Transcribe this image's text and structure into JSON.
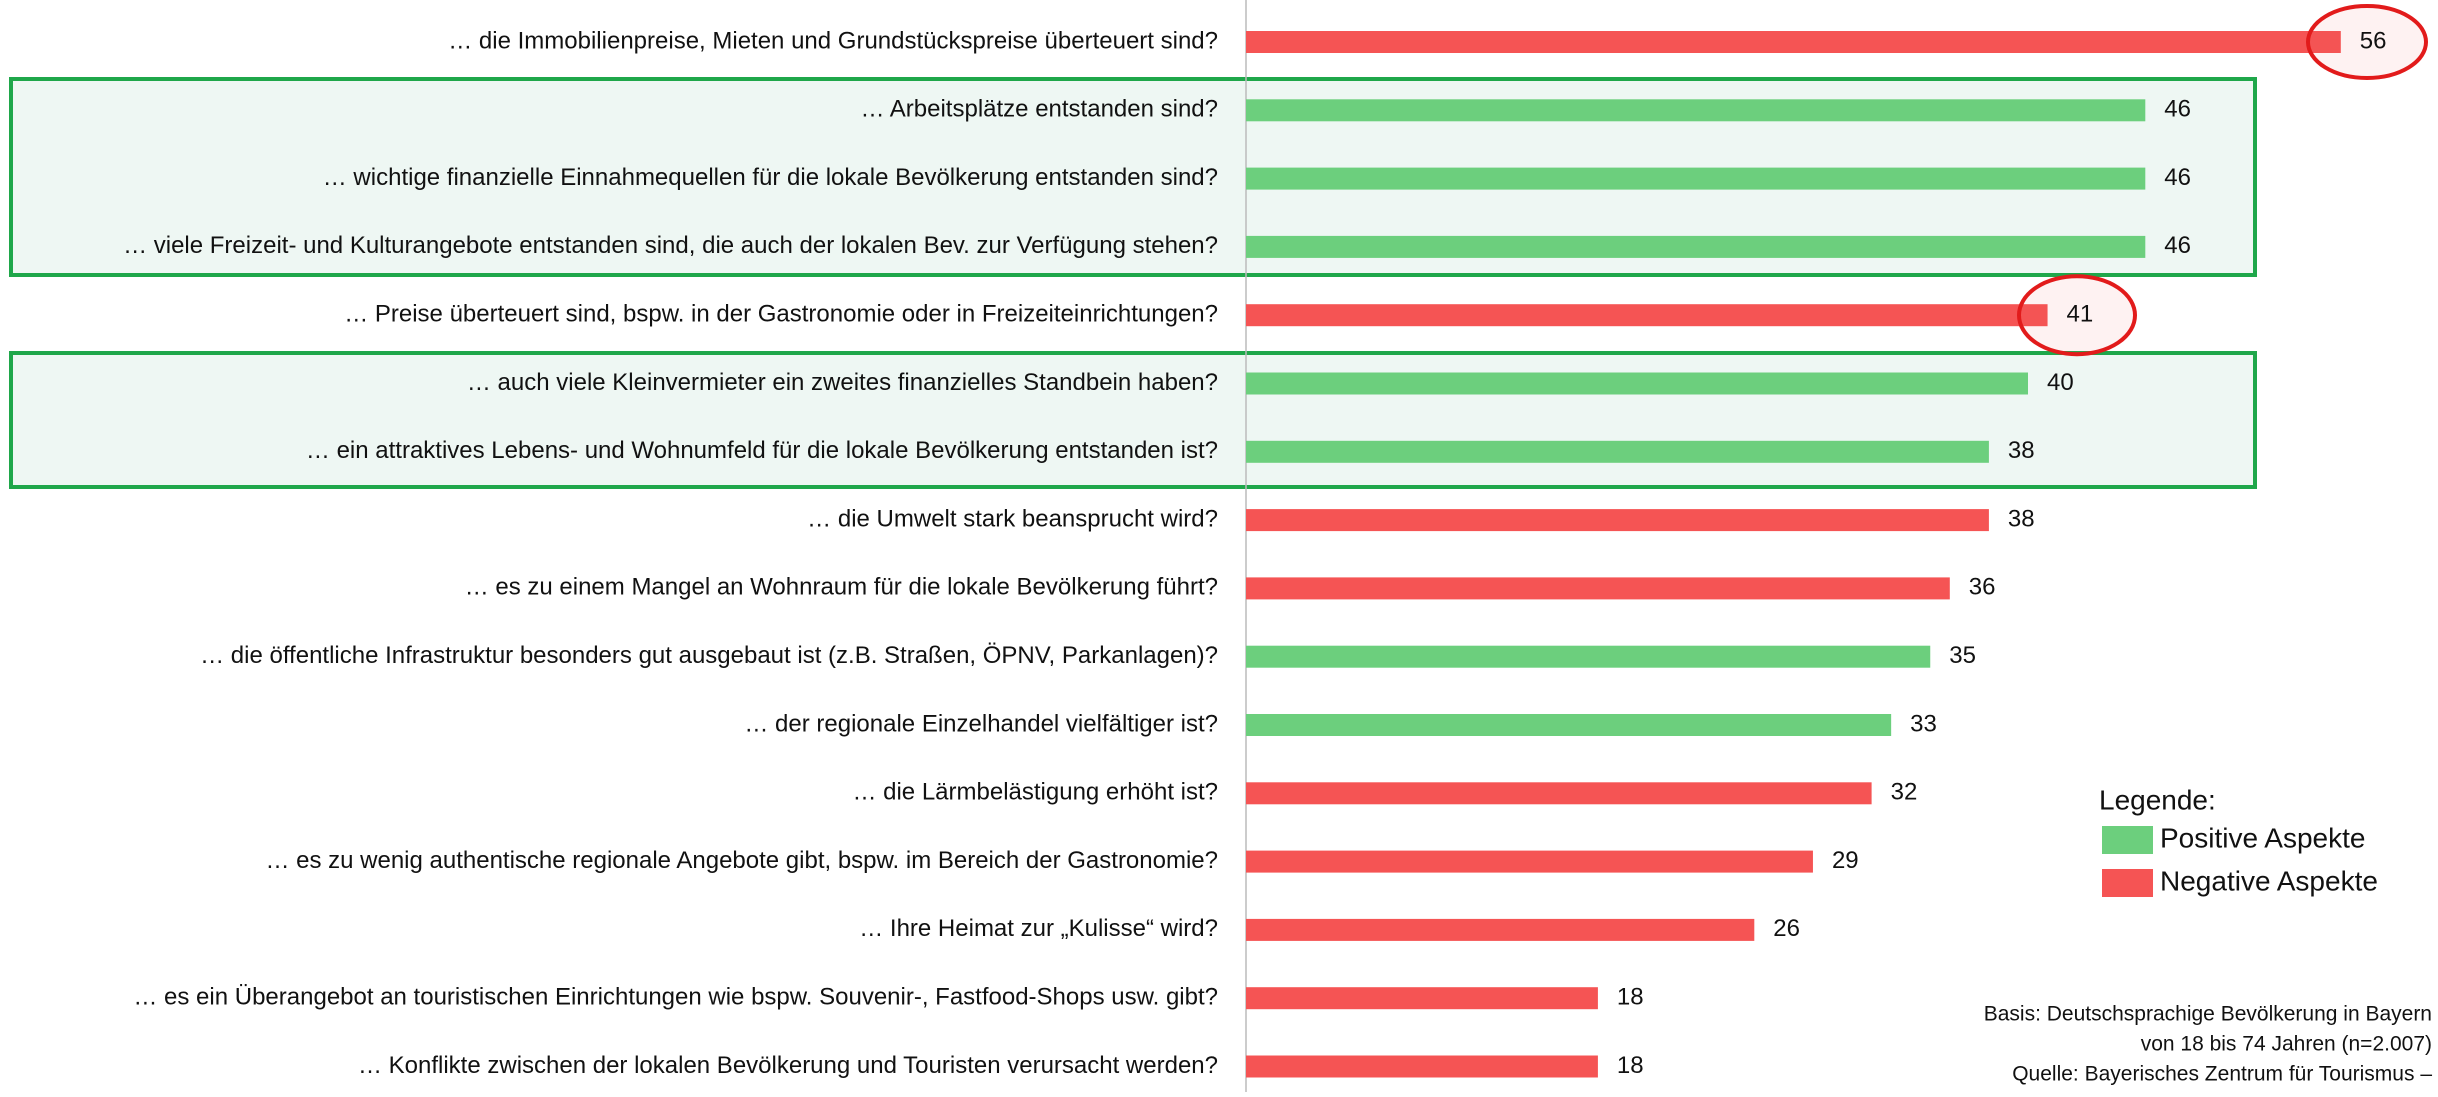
{
  "chart_data": {
    "type": "hbar",
    "categories": [
      "… die Immobilienpreise, Mieten und Grundstückspreise überteuert sind?",
      "… Arbeitsplätze entstanden sind?",
      "… wichtige finanzielle Einnahmequellen für die lokale Bevölkerung entstanden sind?",
      "… viele Freizeit- und Kulturangebote entstanden sind, die auch der lokalen Bev. zur Verfügung stehen?",
      "… Preise überteuert sind, bspw. in der Gastronomie oder in Freizeiteinrichtungen?",
      "… auch viele Kleinvermieter ein zweites finanzielles Standbein haben?",
      "… ein attraktives Lebens- und Wohnumfeld für die lokale Bevölkerung entstanden ist?",
      "… die Umwelt stark beansprucht wird?",
      "… es zu einem Mangel an Wohnraum für die lokale Bevölkerung führt?",
      "… die öffentliche Infrastruktur besonders gut ausgebaut ist (z.B. Straßen, ÖPNV, Parkanlagen)?",
      "… der regionale Einzelhandel vielfältiger ist?",
      "… die Lärmbelästigung erhöht ist?",
      "… es zu wenig authentische regionale Angebote gibt, bspw. im Bereich der Gastronomie?",
      "… Ihre Heimat zur „Kulisse“ wird?",
      "… es ein Überangebot an touristischen Einrichtungen wie bspw. Souvenir-, Fastfood-Shops usw. gibt?",
      "… Konflikte zwischen der lokalen Bevölkerung und Touristen verursacht werden?"
    ],
    "values": [
      56,
      46,
      46,
      46,
      41,
      40,
      38,
      38,
      36,
      35,
      33,
      32,
      29,
      26,
      18,
      18
    ],
    "colors": [
      "#f55454",
      "#6ccf7d",
      "#6ccf7d",
      "#6ccf7d",
      "#f55454",
      "#6ccf7d",
      "#6ccf7d",
      "#f55454",
      "#f55454",
      "#6ccf7d",
      "#6ccf7d",
      "#f55454",
      "#f55454",
      "#f55454",
      "#f55454",
      "#f55454"
    ],
    "xlim": [
      0,
      60
    ],
    "legend": {
      "title": "Legende:",
      "entries": [
        {
          "name": "Positive Aspekte",
          "color": "#6ccf7d"
        },
        {
          "name": "Negative Aspekte",
          "color": "#f55454"
        }
      ]
    },
    "notes": [
      "Basis: Deutschsprachige Bevölkerung in Bayern",
      "von 18 bis 74 Jahren (n=2.007)",
      "Quelle: Bayerisches Zentrum für Tourismus –"
    ]
  }
}
